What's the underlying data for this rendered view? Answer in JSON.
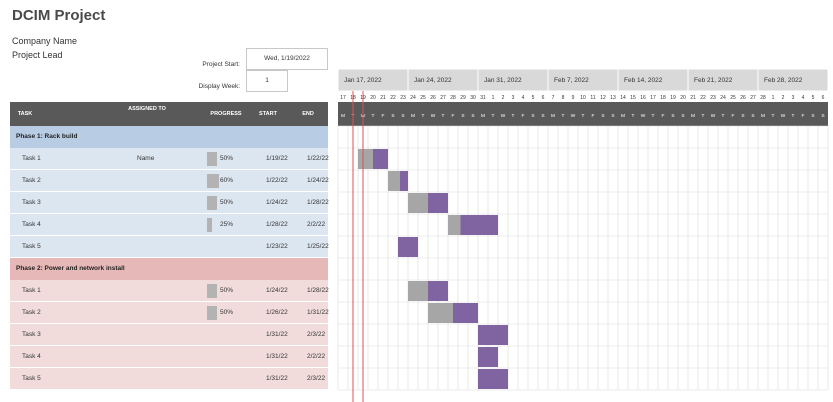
{
  "title": "DCIM Project",
  "company_name": "Company Name",
  "project_lead": "Project Lead",
  "project_start_label": "Project Start:",
  "project_start_value": "Wed, 1/19/2022",
  "display_week_label": "Display Week:",
  "display_week_value": "1",
  "columns": {
    "task": "TASK",
    "assigned": "ASSIGNED TO",
    "progress": "PROGRESS",
    "start": "START",
    "end": "END"
  },
  "weeks": [
    "Jan 17, 2022",
    "Jan 24, 2022",
    "Jan 31, 2022",
    "Feb 7, 2022",
    "Feb 14, 2022",
    "Feb 21, 2022",
    "Feb 28, 2022"
  ],
  "day_numbers": [
    "17",
    "18",
    "19",
    "20",
    "21",
    "22",
    "23",
    "24",
    "25",
    "26",
    "27",
    "28",
    "29",
    "30",
    "31",
    "1",
    "2",
    "3",
    "4",
    "5",
    "6",
    "7",
    "8",
    "9",
    "10",
    "11",
    "12",
    "13",
    "14",
    "15",
    "16",
    "17",
    "18",
    "19",
    "20",
    "21",
    "22",
    "23",
    "24",
    "25",
    "26",
    "27",
    "28",
    "1",
    "2",
    "3",
    "4",
    "5",
    "6"
  ],
  "day_letters": [
    "M",
    "T",
    "W",
    "T",
    "F",
    "S",
    "S"
  ],
  "colors": {
    "phase1_header": "#b8cce4",
    "phase1_row": "#dce6f1",
    "phase2_header": "#e6b8b7",
    "phase2_row": "#f2dcdb",
    "done": "#a6a6a6",
    "remaining": "#8064a2",
    "today_line": "#e05050",
    "header_bar": "#595959"
  },
  "phases": [
    {
      "name": "Phase 1: Rack build",
      "tasks": [
        {
          "task": "Task 1",
          "assigned": "Name",
          "progress": 50,
          "progress_label": "50%",
          "start": "1/19/22",
          "end": "1/22/22",
          "start_day": 2,
          "end_day": 5
        },
        {
          "task": "Task 2",
          "assigned": "",
          "progress": 60,
          "progress_label": "60%",
          "start": "1/22/22",
          "end": "1/24/22",
          "start_day": 5,
          "end_day": 7
        },
        {
          "task": "Task 3",
          "assigned": "",
          "progress": 50,
          "progress_label": "50%",
          "start": "1/24/22",
          "end": "1/28/22",
          "start_day": 7,
          "end_day": 11
        },
        {
          "task": "Task 4",
          "assigned": "",
          "progress": 25,
          "progress_label": "25%",
          "start": "1/28/22",
          "end": "2/2/22",
          "start_day": 11,
          "end_day": 16
        },
        {
          "task": "Task 5",
          "assigned": "",
          "progress": 0,
          "progress_label": "",
          "start": "1/23/22",
          "end": "1/25/22",
          "start_day": 6,
          "end_day": 8
        }
      ]
    },
    {
      "name": "Phase 2: Power and network install",
      "tasks": [
        {
          "task": "Task 1",
          "assigned": "",
          "progress": 50,
          "progress_label": "50%",
          "start": "1/24/22",
          "end": "1/28/22",
          "start_day": 7,
          "end_day": 11
        },
        {
          "task": "Task 2",
          "assigned": "",
          "progress": 50,
          "progress_label": "50%",
          "start": "1/26/22",
          "end": "1/31/22",
          "start_day": 9,
          "end_day": 14
        },
        {
          "task": "Task 3",
          "assigned": "",
          "progress": 0,
          "progress_label": "",
          "start": "1/31/22",
          "end": "2/3/22",
          "start_day": 14,
          "end_day": 17
        },
        {
          "task": "Task 4",
          "assigned": "",
          "progress": 0,
          "progress_label": "",
          "start": "1/31/22",
          "end": "2/2/22",
          "start_day": 14,
          "end_day": 16
        },
        {
          "task": "Task 5",
          "assigned": "",
          "progress": 0,
          "progress_label": "",
          "start": "1/31/22",
          "end": "2/3/22",
          "start_day": 14,
          "end_day": 17
        }
      ]
    }
  ]
}
